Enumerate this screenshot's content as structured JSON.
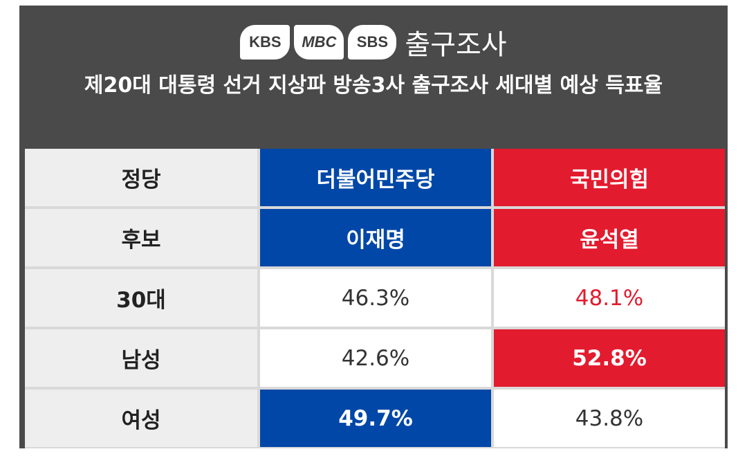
{
  "header": {
    "logos": [
      "KBS",
      "MBC",
      "SBS"
    ],
    "title": "출구조사",
    "subtitle": "제20대 대통령 선거 지상파 방송3사 출구조사 세대별 예상 득표율"
  },
  "colors": {
    "background": "#4a4a4a",
    "democratic_blue": "#0047a8",
    "ppp_red": "#e31b2e"
  },
  "table": {
    "row_labels": [
      "정당",
      "후보",
      "30대",
      "남성",
      "여성"
    ],
    "parties": [
      "더불어민주당",
      "국민의힘"
    ],
    "candidates": [
      "이재명",
      "윤석열"
    ],
    "rows": [
      {
        "label": "30대",
        "values": [
          "46.3%",
          "48.1%"
        ],
        "leader": "국민의힘"
      },
      {
        "label": "남성",
        "values": [
          "42.6%",
          "52.8%"
        ],
        "leader": "국민의힘"
      },
      {
        "label": "여성",
        "values": [
          "49.7%",
          "43.8%"
        ],
        "leader": "더불어민주당"
      }
    ]
  }
}
